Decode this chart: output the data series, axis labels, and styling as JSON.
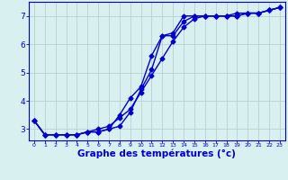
{
  "background_color": "#d8f0f0",
  "grid_color": "#b8d0d0",
  "line_color": "#0000cc",
  "marker": "D",
  "markersize": 2.5,
  "linewidth": 1.0,
  "xlabel": "Graphe des températures (°c)",
  "xlabel_fontsize": 7.5,
  "xlim": [
    -0.5,
    23.5
  ],
  "ylim": [
    2.6,
    7.5
  ],
  "yticks": [
    3,
    4,
    5,
    6,
    7
  ],
  "xticks": [
    0,
    1,
    2,
    3,
    4,
    5,
    6,
    7,
    8,
    9,
    10,
    11,
    12,
    13,
    14,
    15,
    16,
    17,
    18,
    19,
    20,
    21,
    22,
    23
  ],
  "curve1_x": [
    0,
    1,
    2,
    3,
    4,
    5,
    6,
    7,
    8,
    9,
    10,
    11,
    12,
    13,
    14,
    15,
    16,
    17,
    18,
    19,
    20,
    21,
    22,
    23
  ],
  "curve1_y": [
    3.3,
    2.8,
    2.8,
    2.8,
    2.8,
    2.9,
    2.9,
    3.0,
    3.1,
    3.6,
    4.4,
    5.1,
    6.3,
    6.3,
    6.8,
    7.0,
    7.0,
    7.0,
    7.0,
    7.0,
    7.1,
    7.1,
    7.2,
    7.3
  ],
  "curve2_x": [
    0,
    1,
    2,
    3,
    4,
    5,
    6,
    7,
    8,
    9,
    10,
    11,
    12,
    13,
    14,
    15,
    16,
    17,
    18,
    19,
    20,
    21,
    22,
    23
  ],
  "curve2_y": [
    3.3,
    2.8,
    2.8,
    2.8,
    2.8,
    2.9,
    2.9,
    3.0,
    3.5,
    4.1,
    4.5,
    5.6,
    6.3,
    6.4,
    7.0,
    7.0,
    7.0,
    7.0,
    7.0,
    7.0,
    7.1,
    7.1,
    7.2,
    7.3
  ],
  "curve3_x": [
    0,
    1,
    2,
    3,
    4,
    5,
    6,
    7,
    8,
    9,
    10,
    11,
    12,
    13,
    14,
    15,
    16,
    17,
    18,
    19,
    20,
    21,
    22,
    23
  ],
  "curve3_y": [
    3.3,
    2.8,
    2.8,
    2.8,
    2.8,
    2.9,
    3.0,
    3.1,
    3.4,
    3.7,
    4.3,
    4.9,
    5.5,
    6.1,
    6.6,
    6.9,
    7.0,
    7.0,
    7.0,
    7.1,
    7.1,
    7.1,
    7.2,
    7.3
  ]
}
